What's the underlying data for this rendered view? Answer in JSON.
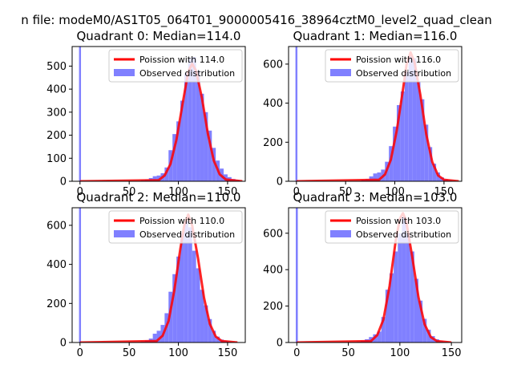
{
  "figure": {
    "suptitle": "n file: modeM0/AS1T05_064T01_9000005416_38964cztM0_level2_quad_clean"
  },
  "colors": {
    "histogram": "#8080ff",
    "poisson": "#ff0000",
    "axis": "#000000",
    "background": "#ffffff"
  },
  "chart_data": [
    {
      "type": "bar",
      "quadrant": 0,
      "title": "Quadrant 0: Median=114.0",
      "median": 114.0,
      "xlim": [
        -8,
        168
      ],
      "ylim": [
        0,
        585
      ],
      "xticks": [
        0,
        50,
        100,
        150
      ],
      "yticks": [
        0,
        100,
        200,
        300,
        400,
        500
      ],
      "grid": false,
      "legend_placement": "upper right",
      "legend": [
        "Poission with 114.0",
        "Observed distribution"
      ],
      "zero_bin": {
        "x": 0,
        "value": 585,
        "note": "bar clipped at top"
      },
      "histogram": {
        "bin_edges": [
          62,
          66,
          70,
          74,
          78,
          82,
          86,
          90,
          94,
          98,
          102,
          106,
          110,
          114,
          118,
          122,
          126,
          130,
          134,
          138,
          142,
          146,
          150,
          154,
          158,
          162
        ],
        "counts": [
          5,
          8,
          14,
          22,
          25,
          35,
          60,
          135,
          205,
          260,
          350,
          470,
          535,
          540,
          480,
          380,
          300,
          220,
          145,
          90,
          55,
          30,
          18,
          10,
          5
        ]
      },
      "poisson_curve": {
        "x": [
          0,
          80,
          86,
          92,
          98,
          104,
          110,
          114,
          118,
          124,
          130,
          136,
          142,
          148,
          165
        ],
        "y": [
          0,
          5,
          25,
          75,
          180,
          330,
          475,
          510,
          480,
          360,
          205,
          90,
          30,
          8,
          0
        ]
      }
    },
    {
      "type": "bar",
      "quadrant": 1,
      "title": "Quadrant 1: Median=116.0",
      "median": 116.0,
      "xlim": [
        -8,
        168
      ],
      "ylim": [
        0,
        690
      ],
      "xticks": [
        0,
        50,
        100,
        150
      ],
      "yticks": [
        0,
        200,
        400,
        600
      ],
      "grid": false,
      "legend_placement": "upper right",
      "legend": [
        "Poission with 116.0",
        "Observed distribution"
      ],
      "zero_bin": {
        "x": 0,
        "value": 690,
        "note": "bar clipped at top"
      },
      "histogram": {
        "bin_edges": [
          66,
          70,
          74,
          78,
          82,
          86,
          90,
          94,
          98,
          102,
          106,
          110,
          114,
          118,
          122,
          126,
          130,
          134,
          138,
          142,
          146,
          150,
          154,
          158
        ],
        "counts": [
          8,
          12,
          25,
          40,
          45,
          60,
          100,
          180,
          280,
          390,
          460,
          560,
          640,
          630,
          510,
          420,
          290,
          175,
          90,
          45,
          20,
          10,
          5
        ]
      },
      "poisson_curve": {
        "x": [
          0,
          84,
          90,
          96,
          102,
          108,
          112,
          116,
          120,
          126,
          132,
          138,
          144,
          150,
          165
        ],
        "y": [
          0,
          8,
          35,
          110,
          260,
          460,
          600,
          660,
          610,
          440,
          240,
          100,
          30,
          8,
          0
        ]
      }
    },
    {
      "type": "bar",
      "quadrant": 2,
      "title": "Quadrant 2: Median=110.0",
      "median": 110.0,
      "xlim": [
        -8,
        168
      ],
      "ylim": [
        0,
        690
      ],
      "xticks": [
        0,
        50,
        100,
        150
      ],
      "yticks": [
        0,
        200,
        400,
        600
      ],
      "grid": false,
      "legend_placement": "upper right",
      "legend": [
        "Poission with 110.0",
        "Observed distribution"
      ],
      "zero_bin": {
        "x": 0,
        "value": 690,
        "note": "bar clipped at top"
      },
      "histogram": {
        "bin_edges": [
          62,
          66,
          70,
          74,
          78,
          82,
          86,
          90,
          94,
          98,
          102,
          106,
          110,
          114,
          118,
          122,
          126,
          130,
          134,
          138,
          142,
          146,
          150,
          154
        ],
        "counts": [
          5,
          10,
          20,
          45,
          60,
          90,
          150,
          260,
          350,
          440,
          560,
          620,
          590,
          470,
          380,
          270,
          190,
          120,
          60,
          30,
          15,
          8,
          4
        ]
      },
      "poisson_curve": {
        "x": [
          0,
          78,
          84,
          90,
          96,
          102,
          106,
          110,
          114,
          120,
          126,
          132,
          138,
          144,
          160
        ],
        "y": [
          0,
          8,
          35,
          110,
          270,
          480,
          600,
          655,
          600,
          430,
          230,
          95,
          30,
          8,
          0
        ]
      }
    },
    {
      "type": "bar",
      "quadrant": 3,
      "title": "Quadrant 3: Median=103.0",
      "median": 103.0,
      "xlim": [
        -8,
        160
      ],
      "ylim": [
        0,
        740
      ],
      "xticks": [
        0,
        50,
        100,
        150
      ],
      "yticks": [
        0,
        200,
        400,
        600
      ],
      "grid": false,
      "legend_placement": "upper right",
      "legend": [
        "Poission with 103.0",
        "Observed distribution"
      ],
      "zero_bin": {
        "x": 0,
        "value": 740,
        "note": "bar clipped at top"
      },
      "histogram": {
        "bin_edges": [
          58,
          62,
          66,
          70,
          74,
          78,
          82,
          86,
          90,
          94,
          98,
          102,
          106,
          110,
          114,
          118,
          122,
          126,
          130,
          134,
          138,
          142,
          146
        ],
        "counts": [
          5,
          10,
          18,
          30,
          45,
          60,
          140,
          290,
          380,
          500,
          600,
          690,
          600,
          500,
          350,
          230,
          130,
          70,
          35,
          18,
          8,
          4
        ]
      },
      "poisson_curve": {
        "x": [
          0,
          72,
          78,
          84,
          90,
          96,
          100,
          103,
          106,
          112,
          118,
          124,
          130,
          136,
          150
        ],
        "y": [
          0,
          8,
          40,
          125,
          310,
          560,
          680,
          710,
          670,
          470,
          250,
          100,
          30,
          8,
          0
        ]
      }
    }
  ]
}
